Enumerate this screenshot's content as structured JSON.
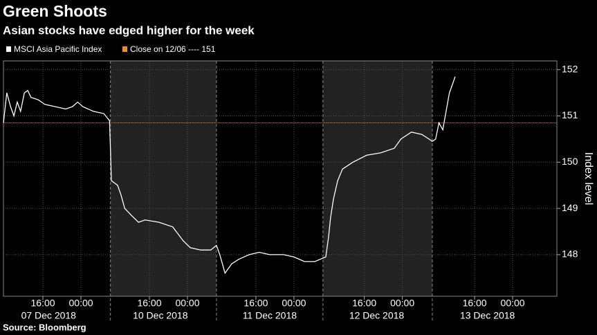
{
  "chart_data": {
    "type": "line",
    "title": "Green Shoots",
    "subtitle": "Asian stocks have edged higher for the week",
    "y_label": "Index level",
    "source": "Source: Bloomberg",
    "x": [
      0,
      0.7,
      1.5,
      2.2,
      2.9,
      3.6,
      4.4,
      5.1,
      5.8,
      7.3,
      8.7,
      10.9,
      13.1,
      14.5,
      15.6,
      16.7,
      18.9,
      21.1,
      22.3,
      22.5,
      22.7,
      24.0,
      24.7,
      25.5,
      26.9,
      28.4,
      29.8,
      32.7,
      35.6,
      37.8,
      39.3,
      41.5,
      43.6,
      44.8,
      45.5,
      46.6,
      48.0,
      49.5,
      51.7,
      53.8,
      56.0,
      58.9,
      61.1,
      63.3,
      65.5,
      67.8,
      68.4,
      68.8,
      69.4,
      70.3,
      71.3,
      73.5,
      76.4,
      79.3,
      82.2,
      83.6,
      85.8,
      88.0,
      89.5,
      90.2,
      90.9,
      91.6,
      92.4,
      93.1,
      93.8,
      94.5,
      95.0
    ],
    "series": [
      {
        "name": "MSCI Asia Pacific Index",
        "color": "#ffffff",
        "values": [
          150.85,
          151.5,
          151.2,
          151.0,
          151.3,
          151.1,
          151.5,
          151.55,
          151.4,
          151.35,
          151.25,
          151.2,
          151.15,
          151.2,
          151.3,
          151.2,
          151.1,
          151.05,
          150.9,
          150.3,
          149.6,
          149.5,
          149.3,
          149.0,
          148.85,
          148.7,
          148.75,
          148.7,
          148.6,
          148.3,
          148.15,
          148.1,
          148.1,
          148.2,
          148.0,
          147.6,
          147.8,
          147.9,
          148.0,
          148.05,
          148.0,
          148.0,
          147.95,
          147.85,
          147.85,
          147.95,
          148.4,
          148.8,
          149.2,
          149.6,
          149.85,
          150.0,
          150.15,
          150.2,
          150.3,
          150.5,
          150.65,
          150.6,
          150.5,
          150.45,
          150.5,
          150.85,
          150.7,
          151.1,
          151.5,
          151.7,
          151.85
        ]
      }
    ],
    "reference_line": {
      "name": "Close on 12/06 ---- 151",
      "value": 150.85,
      "color": "#f28c28"
    },
    "xlim": [
      0,
      116.4
    ],
    "ylim": [
      147.1,
      152.19
    ],
    "yticks": [
      148,
      149,
      150,
      151,
      152
    ],
    "xticks": [
      {
        "value": 8.3,
        "label": "16:00"
      },
      {
        "value": 16.3,
        "label": "00:00"
      },
      {
        "value": 30.7,
        "label": "16:00"
      },
      {
        "value": 38.7,
        "label": "00:00"
      },
      {
        "value": 53.1,
        "label": "16:00"
      },
      {
        "value": 61.1,
        "label": "00:00"
      },
      {
        "value": 75.9,
        "label": "16:00"
      },
      {
        "value": 83.9,
        "label": "00:00"
      },
      {
        "value": 99.1,
        "label": "16:00"
      },
      {
        "value": 107.1,
        "label": "00:00"
      }
    ],
    "date_labels": [
      {
        "value": 9.5,
        "label": "07 Dec 2018"
      },
      {
        "value": 33,
        "label": "10 Dec 2018"
      },
      {
        "value": 56,
        "label": "11 Dec 2018"
      },
      {
        "value": 78.5,
        "label": "12 Dec 2018"
      },
      {
        "value": 101.8,
        "label": "13 Dec 2018"
      }
    ],
    "session_dividers": [
      22.5,
      44.8,
      67.2,
      90.2
    ],
    "shaded_sessions": [
      [
        22.5,
        44.8
      ],
      [
        67.2,
        90.2
      ]
    ],
    "grid": true
  }
}
